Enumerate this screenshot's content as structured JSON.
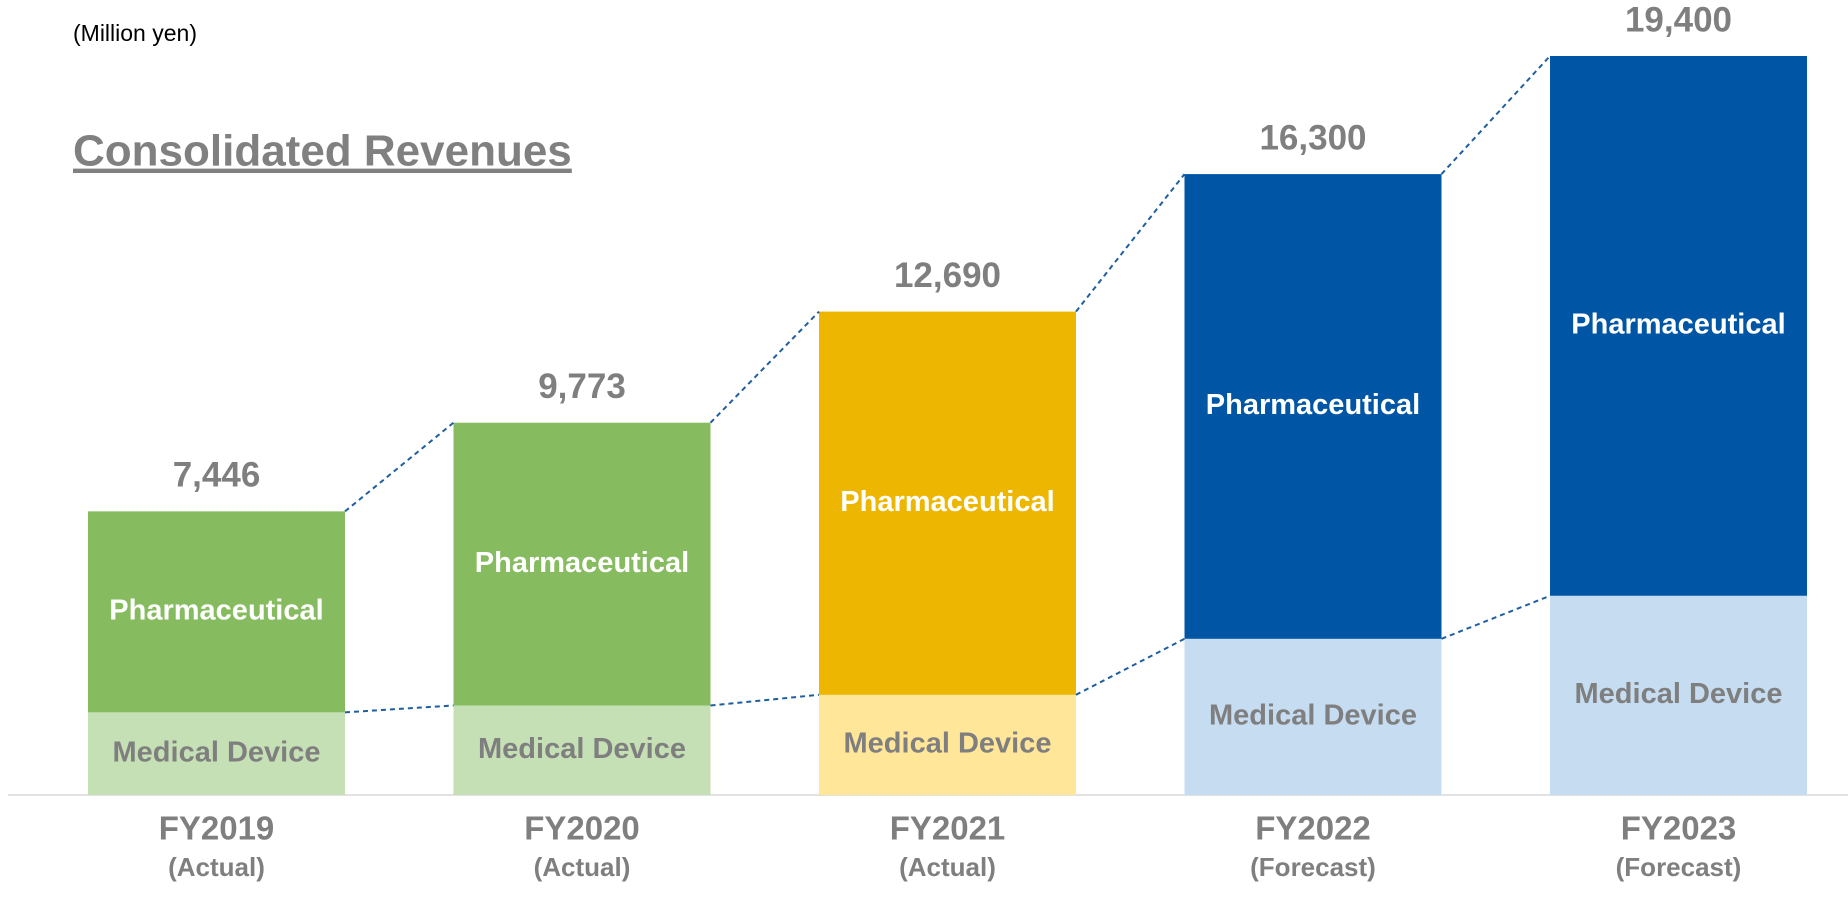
{
  "chart_data": {
    "type": "stacked_bar",
    "unit_label": "(Million yen)",
    "title": "Consolidated Revenues",
    "categories": [
      "FY2019",
      "FY2020",
      "FY2021",
      "FY2022",
      "FY2023"
    ],
    "category_notes": [
      "(Actual)",
      "(Actual)",
      "(Actual)",
      "(Forecast)",
      "(Forecast)"
    ],
    "series": [
      {
        "name": "Medical Device",
        "colors": [
          "#c5e0b4",
          "#c5e0b4",
          "#ffe699",
          "#c5dcf1",
          "#c5dcf1"
        ],
        "label_color": "#7f7f7f",
        "values": [
          2170,
          2350,
          2630,
          4100,
          5230
        ]
      },
      {
        "name": "Pharmaceutical",
        "colors": [
          "#86bc5f",
          "#86bc5f",
          "#edb600",
          "#0056a4",
          "#0056a4"
        ],
        "label_color": "#ffffff",
        "values": [
          5276,
          7423,
          10060,
          12200,
          14170
        ]
      }
    ],
    "totals": [
      7446,
      9773,
      12690,
      16300,
      19400
    ],
    "total_labels": [
      "7,446",
      "9,773",
      "12,690",
      "16,300",
      "19,400"
    ],
    "ylim": [
      0,
      19400
    ],
    "connector_color": "#1f5fa0"
  }
}
